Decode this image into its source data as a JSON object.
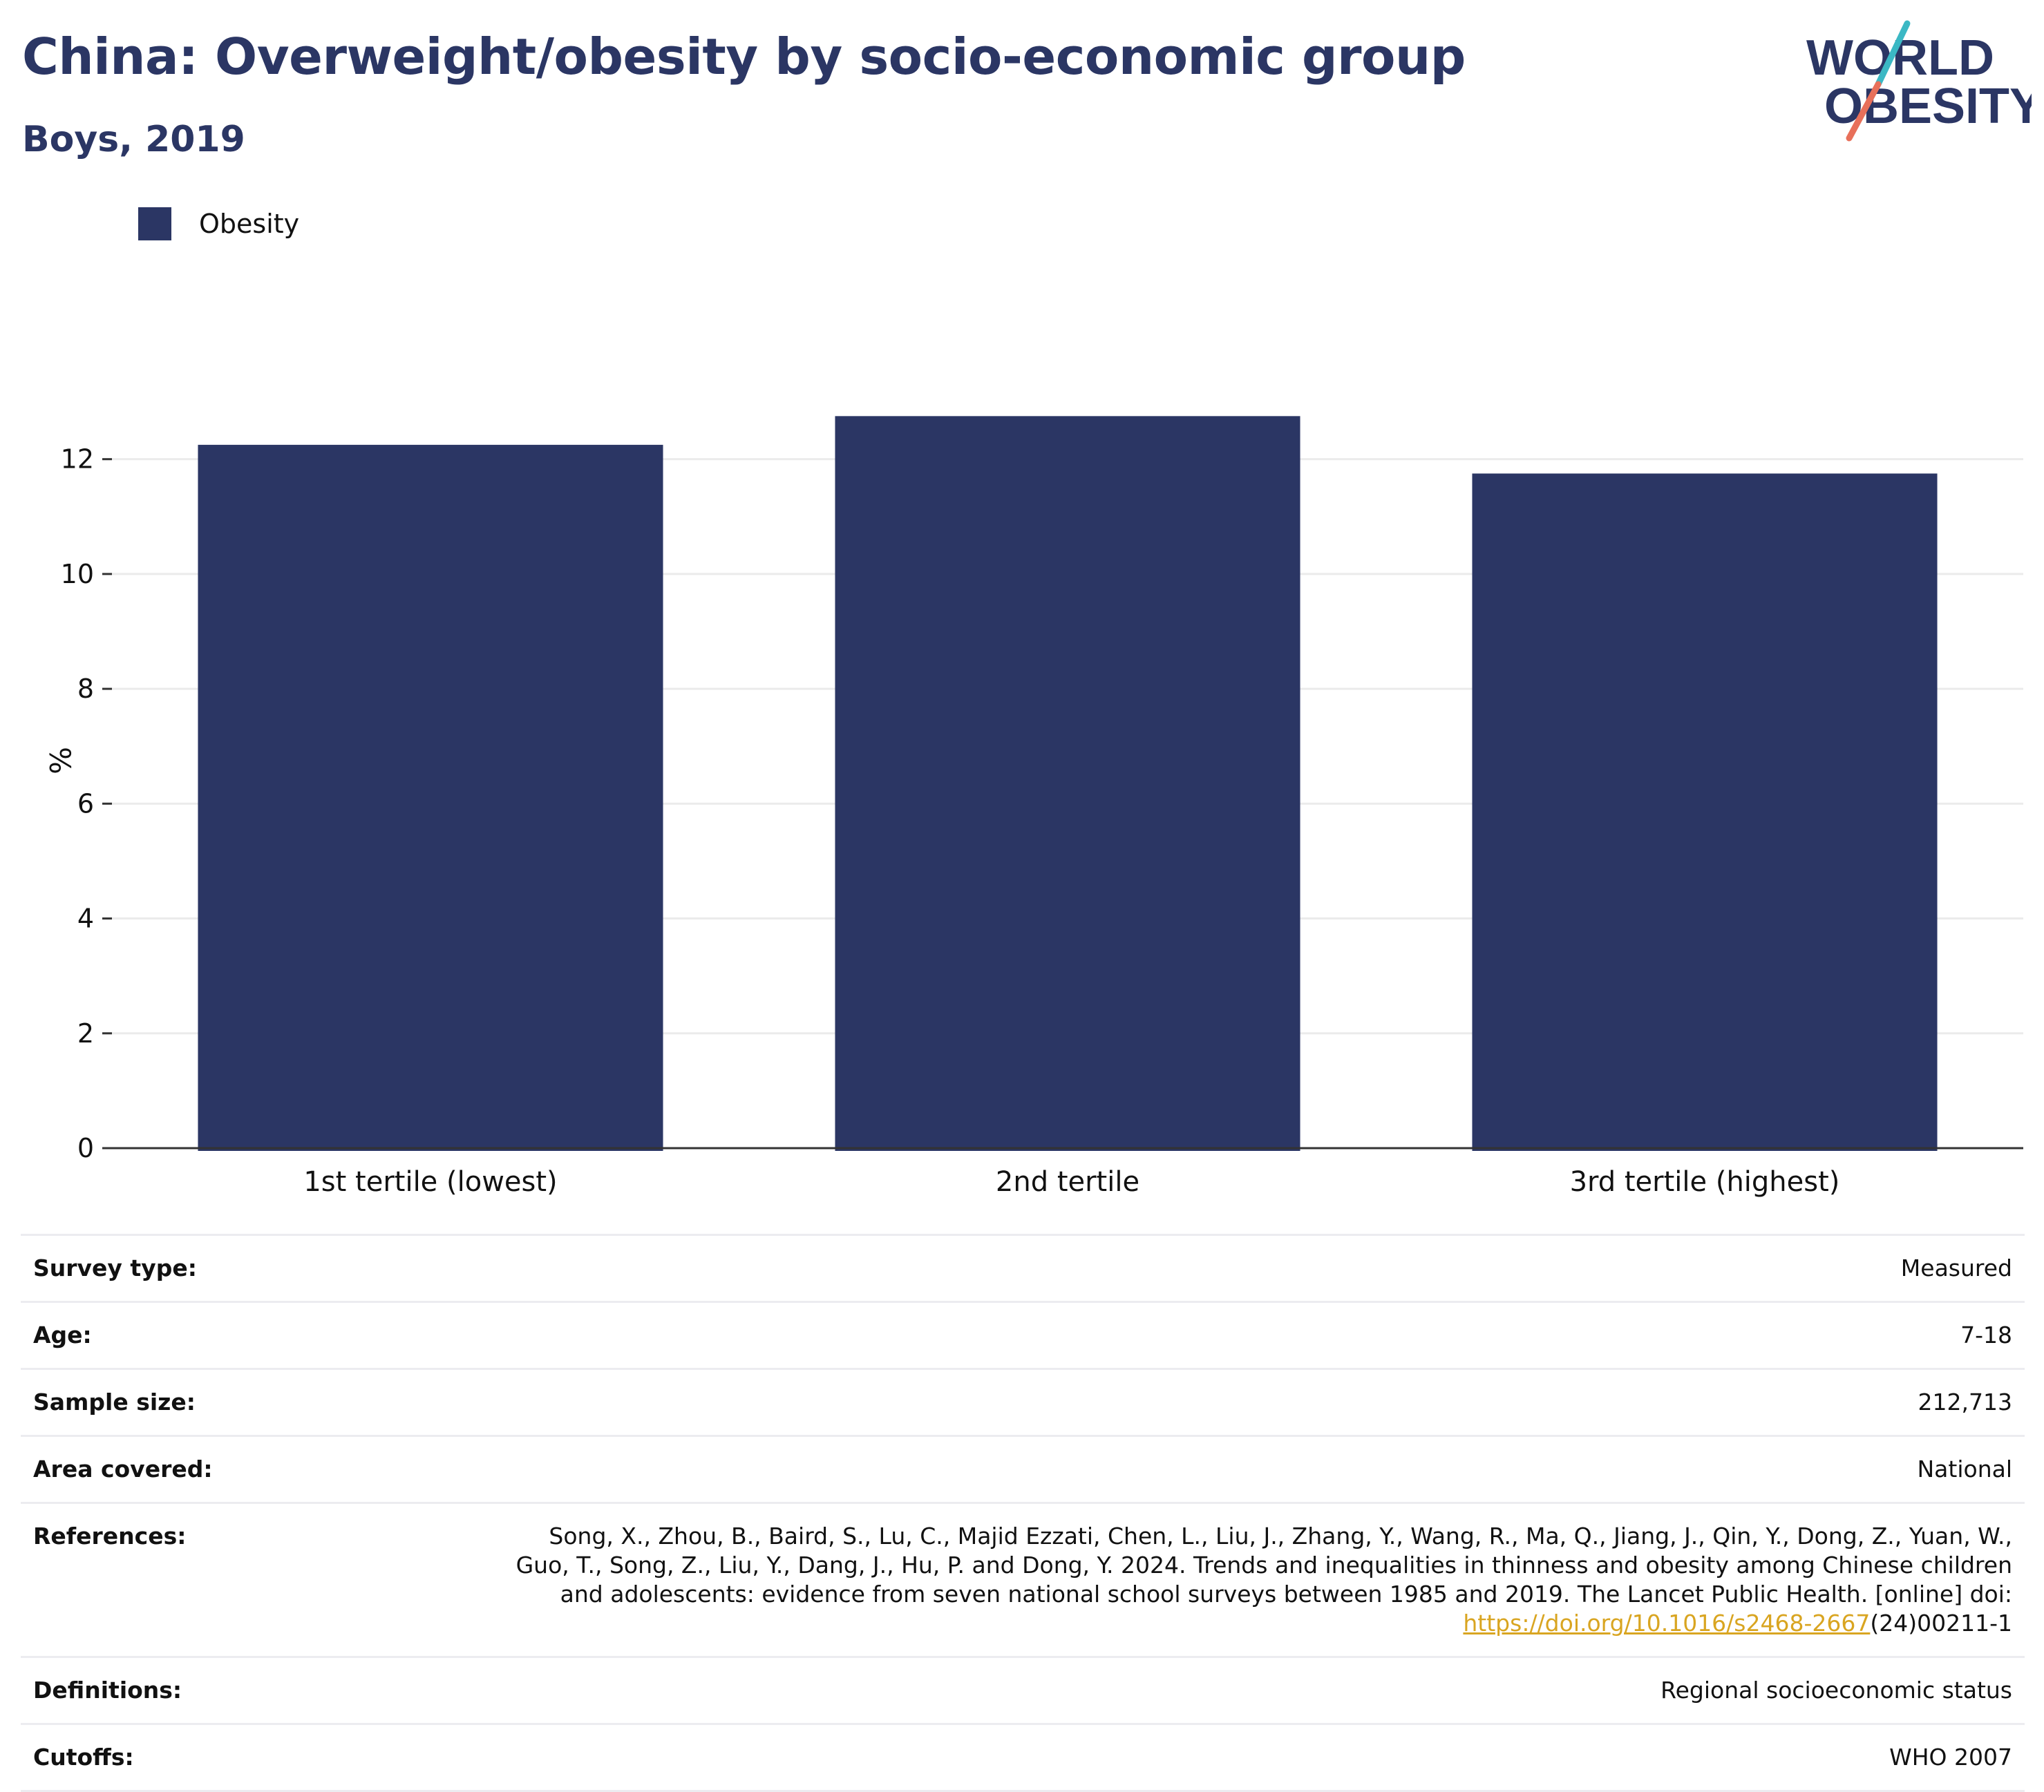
{
  "header": {
    "title": "China: Overweight/obesity by socio-economic group",
    "subtitle": "Boys, 2019"
  },
  "logo": {
    "line1": "WORLD",
    "line2": "OBESITY",
    "colors": {
      "text": "#2b3664",
      "slash_top": "#3bb8c4",
      "slash_bottom": "#e8705a"
    }
  },
  "chart_data": {
    "type": "bar",
    "categories": [
      "1st tertile (lowest)",
      "2nd tertile",
      "3rd tertile (highest)"
    ],
    "series": [
      {
        "name": "Obesity",
        "values": [
          12.25,
          12.75,
          11.75
        ],
        "color": "#2b3664"
      }
    ],
    "title": "",
    "xlabel": "",
    "ylabel": "%",
    "ylim": [
      0,
      13.5
    ],
    "yticks": [
      0,
      2,
      4,
      6,
      8,
      10,
      12
    ],
    "grid": true,
    "legend": "top-left"
  },
  "info": {
    "rows": [
      {
        "label": "Survey type:",
        "value": "Measured"
      },
      {
        "label": "Age:",
        "value": "7-18"
      },
      {
        "label": "Sample size:",
        "value": "212,713"
      },
      {
        "label": "Area covered:",
        "value": "National"
      }
    ],
    "references": {
      "label": "References:",
      "text": "Song, X., Zhou, B., Baird, S., Lu, C., Majid Ezzati, Chen, L., Liu, J., Zhang, Y., Wang, R., Ma, Q., Jiang, J., Qin, Y., Dong, Z., Yuan, W., Guo, T., Song, Z., Liu, Y., Dang, J., Hu, P. and Dong, Y. 2024. Trends and inequalities in thinness and obesity among Chinese children and adolescents: evidence from seven national school surveys between 1985 and 2019. The Lancet Public Health. [online] doi:",
      "link": "https://doi.org/10.1016/s2468-2667",
      "suffix": "(24)00211-1"
    },
    "rows_after": [
      {
        "label": "Definitions:",
        "value": "Regional socioeconomic status"
      },
      {
        "label": "Cutoffs:",
        "value": "WHO 2007"
      }
    ]
  }
}
